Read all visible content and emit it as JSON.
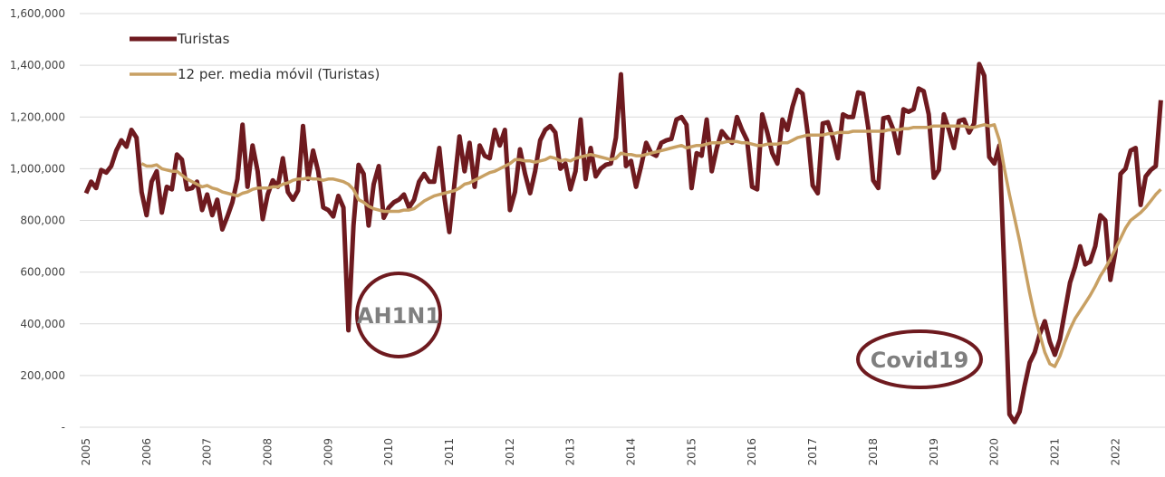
{
  "chart_data": {
    "type": "line",
    "categories": [
      "2005",
      null,
      null,
      null,
      null,
      null,
      null,
      null,
      null,
      null,
      null,
      null,
      "2006",
      null,
      null,
      null,
      null,
      null,
      null,
      null,
      null,
      null,
      null,
      null,
      "2007",
      null,
      null,
      null,
      null,
      null,
      null,
      null,
      null,
      null,
      null,
      null,
      "2008",
      null,
      null,
      null,
      null,
      null,
      null,
      null,
      null,
      null,
      null,
      null,
      "2009",
      null,
      null,
      null,
      null,
      null,
      null,
      null,
      null,
      null,
      null,
      null,
      "2010",
      null,
      null,
      null,
      null,
      null,
      null,
      null,
      null,
      null,
      null,
      null,
      "2011",
      null,
      null,
      null,
      null,
      null,
      null,
      null,
      null,
      null,
      null,
      null,
      "2012",
      null,
      null,
      null,
      null,
      null,
      null,
      null,
      null,
      null,
      null,
      null,
      "2013",
      null,
      null,
      null,
      null,
      null,
      null,
      null,
      null,
      null,
      null,
      null,
      "2014",
      null,
      null,
      null,
      null,
      null,
      null,
      null,
      null,
      null,
      null,
      null,
      "2015",
      null,
      null,
      null,
      null,
      null,
      null,
      null,
      null,
      null,
      null,
      null,
      "2016",
      null,
      null,
      null,
      null,
      null,
      null,
      null,
      null,
      null,
      null,
      null,
      "2017",
      null,
      null,
      null,
      null,
      null,
      null,
      null,
      null,
      null,
      null,
      null,
      "2018",
      null,
      null,
      null,
      null,
      null,
      null,
      null,
      null,
      null,
      null,
      null,
      "2019",
      null,
      null,
      null,
      null,
      null,
      null,
      null,
      null,
      null,
      null,
      null,
      "2020",
      null,
      null,
      null,
      null,
      null,
      null,
      null,
      null,
      null,
      null,
      null,
      "2021",
      null,
      null,
      null,
      null,
      null,
      null,
      null,
      null,
      null,
      null,
      null,
      "2022",
      null,
      null,
      null,
      null,
      null,
      null,
      null,
      null,
      null
    ],
    "series": [
      {
        "name": "Turistas",
        "color": "#6e1a1f",
        "values": [
          905000,
          950000,
          925000,
          995000,
          985000,
          1010000,
          1070000,
          1110000,
          1085000,
          1150000,
          1120000,
          910000,
          820000,
          950000,
          990000,
          830000,
          930000,
          920000,
          1055000,
          1035000,
          920000,
          925000,
          950000,
          840000,
          900000,
          820000,
          880000,
          765000,
          815000,
          870000,
          960000,
          1170000,
          930000,
          1090000,
          990000,
          805000,
          900000,
          955000,
          930000,
          1040000,
          910000,
          880000,
          915000,
          1165000,
          960000,
          1070000,
          990000,
          850000,
          840000,
          815000,
          895000,
          850000,
          375000,
          780000,
          1015000,
          980000,
          780000,
          940000,
          1010000,
          810000,
          850000,
          870000,
          880000,
          900000,
          850000,
          880000,
          950000,
          980000,
          950000,
          950000,
          1080000,
          890000,
          755000,
          940000,
          1125000,
          990000,
          1100000,
          930000,
          1090000,
          1050000,
          1040000,
          1150000,
          1090000,
          1150000,
          840000,
          910000,
          1075000,
          980000,
          905000,
          990000,
          1110000,
          1150000,
          1165000,
          1140000,
          1000000,
          1020000,
          920000,
          990000,
          1190000,
          960000,
          1080000,
          970000,
          1000000,
          1015000,
          1020000,
          1120000,
          1365000,
          1010000,
          1030000,
          930000,
          1010000,
          1100000,
          1060000,
          1050000,
          1100000,
          1110000,
          1115000,
          1190000,
          1200000,
          1170000,
          925000,
          1060000,
          1050000,
          1190000,
          990000,
          1080000,
          1145000,
          1120000,
          1100000,
          1200000,
          1150000,
          1110000,
          930000,
          920000,
          1210000,
          1140000,
          1060000,
          1020000,
          1190000,
          1150000,
          1240000,
          1305000,
          1290000,
          1140000,
          935000,
          905000,
          1175000,
          1180000,
          1120000,
          1040000,
          1210000,
          1200000,
          1200000,
          1295000,
          1290000,
          1160000,
          955000,
          925000,
          1195000,
          1200000,
          1150000,
          1060000,
          1230000,
          1220000,
          1230000,
          1310000,
          1300000,
          1210000,
          965000,
          995000,
          1210000,
          1150000,
          1080000,
          1185000,
          1190000,
          1140000,
          1175000,
          1405000,
          1360000,
          1045000,
          1020000,
          1090000,
          600000,
          50000,
          20000,
          60000,
          160000,
          250000,
          290000,
          360000,
          410000,
          330000,
          280000,
          340000,
          450000,
          560000,
          620000,
          700000,
          630000,
          640000,
          700000,
          820000,
          800000,
          570000,
          680000,
          980000,
          1000000,
          1070000,
          1080000,
          860000,
          970000,
          995000,
          1010000,
          1265000
        ]
      },
      {
        "name": "12 per. media móvil (Turistas)",
        "color": "#c8a063",
        "values": [
          null,
          null,
          null,
          null,
          null,
          null,
          null,
          null,
          null,
          null,
          null,
          1020000,
          1010000,
          1010000,
          1015000,
          1000000,
          995000,
          990000,
          990000,
          975000,
          960000,
          950000,
          940000,
          930000,
          935000,
          925000,
          920000,
          910000,
          905000,
          900000,
          895000,
          905000,
          910000,
          920000,
          925000,
          925000,
          925000,
          930000,
          930000,
          940000,
          945000,
          955000,
          960000,
          960000,
          965000,
          960000,
          960000,
          955000,
          960000,
          960000,
          955000,
          950000,
          940000,
          920000,
          880000,
          870000,
          855000,
          845000,
          840000,
          835000,
          835000,
          835000,
          835000,
          840000,
          840000,
          845000,
          860000,
          875000,
          885000,
          895000,
          900000,
          905000,
          910000,
          915000,
          925000,
          940000,
          945000,
          955000,
          965000,
          975000,
          985000,
          990000,
          1000000,
          1010000,
          1020000,
          1035000,
          1035000,
          1030000,
          1030000,
          1025000,
          1030000,
          1035000,
          1045000,
          1040000,
          1030000,
          1035000,
          1030000,
          1040000,
          1045000,
          1050000,
          1055000,
          1050000,
          1045000,
          1040000,
          1035000,
          1040000,
          1060000,
          1055000,
          1055000,
          1050000,
          1050000,
          1055000,
          1060000,
          1065000,
          1070000,
          1075000,
          1080000,
          1085000,
          1090000,
          1080000,
          1085000,
          1090000,
          1090000,
          1095000,
          1100000,
          1100000,
          1100000,
          1105000,
          1105000,
          1105000,
          1100000,
          1100000,
          1095000,
          1090000,
          1090000,
          1095000,
          1095000,
          1095000,
          1100000,
          1100000,
          1110000,
          1120000,
          1125000,
          1130000,
          1130000,
          1130000,
          1130000,
          1135000,
          1135000,
          1140000,
          1140000,
          1140000,
          1145000,
          1145000,
          1145000,
          1145000,
          1145000,
          1145000,
          1145000,
          1150000,
          1150000,
          1150000,
          1155000,
          1155000,
          1160000,
          1160000,
          1160000,
          1160000,
          1165000,
          1165000,
          1165000,
          1165000,
          1165000,
          1165000,
          1165000,
          1160000,
          1160000,
          1165000,
          1170000,
          1165000,
          1170000,
          1110000,
          1000000,
          900000,
          810000,
          720000,
          620000,
          520000,
          430000,
          360000,
          290000,
          245000,
          235000,
          275000,
          330000,
          380000,
          420000,
          450000,
          480000,
          510000,
          545000,
          585000,
          615000,
          650000,
          690000,
          730000,
          770000,
          800000,
          815000,
          830000,
          850000,
          875000,
          900000,
          920000
        ]
      }
    ],
    "ylim": [
      0,
      1600000
    ],
    "yticks": [
      {
        "value": 0,
        "label": "-"
      },
      {
        "value": 200000,
        "label": "200,000"
      },
      {
        "value": 400000,
        "label": "400,000"
      },
      {
        "value": 600000,
        "label": "600,000"
      },
      {
        "value": 800000,
        "label": "800,000"
      },
      {
        "value": 1000000,
        "label": "1,000,000"
      },
      {
        "value": 1200000,
        "label": "1,200,000"
      },
      {
        "value": 1400000,
        "label": "1,400,000"
      },
      {
        "value": 1600000,
        "label": "1,600,000"
      }
    ],
    "grid": true,
    "legend": "upper left",
    "annotations": [
      "AH1N1",
      "Covid19"
    ]
  }
}
